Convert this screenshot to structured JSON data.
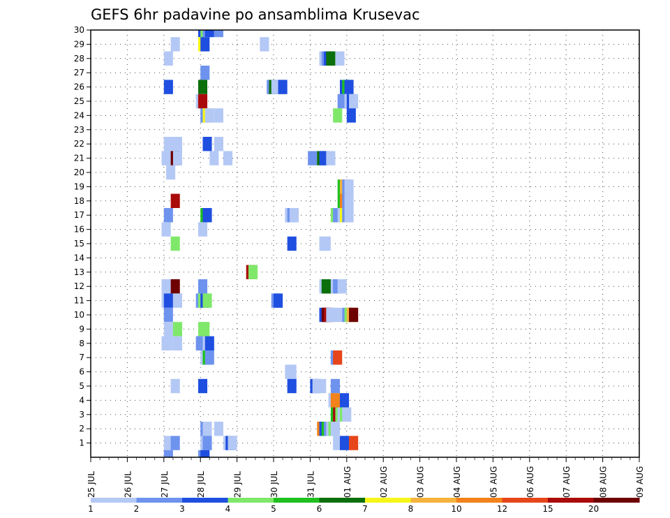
{
  "chart_data": {
    "type": "heatmap",
    "title": "GEFS 6hr padavine po ansamblima Krusevac",
    "xlabel": "",
    "ylabel": "",
    "x_tick_labels": [
      "25 JUL",
      "26 JUL",
      "27 JUL",
      "28 JUL",
      "29 JUL",
      "30 JUL",
      "31 JUL",
      "01 AUG",
      "02 AUG",
      "03 AUG",
      "04 AUG",
      "05 AUG",
      "06 AUG",
      "07 AUG",
      "08 AUG",
      "09 AUG"
    ],
    "x_range_days": [
      0,
      15
    ],
    "steps_per_day": 4,
    "y_tick_labels": [
      "1",
      "2",
      "3",
      "4",
      "5",
      "6",
      "7",
      "8",
      "9",
      "10",
      "11",
      "12",
      "13",
      "14",
      "15",
      "16",
      "17",
      "18",
      "19",
      "20",
      "21",
      "22",
      "23",
      "24",
      "25",
      "26",
      "27",
      "28",
      "29",
      "30"
    ],
    "y_range": [
      0,
      30
    ],
    "grid": true,
    "legend": {
      "placement": "bottom",
      "labels": [
        "1",
        "2",
        "3",
        "4",
        "5",
        "6",
        "7",
        "8",
        "10",
        "12",
        "15",
        "20"
      ],
      "colors": [
        "#b4c8f5",
        "#6e93ee",
        "#1f4fe0",
        "#7fe86a",
        "#1fc01f",
        "#0b6f0b",
        "#f5f51a",
        "#f5b23c",
        "#f28219",
        "#e6461a",
        "#aa0a0a",
        "#6e0000"
      ]
    },
    "cells": [
      {
        "x": 11.75,
        "y": 30,
        "v": 3
      },
      {
        "x": 12.0,
        "y": 30,
        "v": 4
      },
      {
        "x": 12.25,
        "y": 30,
        "v": 2
      },
      {
        "x": 12.5,
        "y": 30,
        "v": 3
      },
      {
        "x": 13.5,
        "y": 30,
        "v": 2
      },
      {
        "x": 8.75,
        "y": 29,
        "v": 1
      },
      {
        "x": 11.75,
        "y": 29,
        "v": 7
      },
      {
        "x": 12.0,
        "y": 29,
        "v": 3
      },
      {
        "x": 18.5,
        "y": 29,
        "v": 1
      },
      {
        "x": 8.0,
        "y": 28,
        "v": 1
      },
      {
        "x": 25.0,
        "y": 28,
        "v": 1
      },
      {
        "x": 25.25,
        "y": 28,
        "v": 2
      },
      {
        "x": 25.5,
        "y": 28,
        "v": 3
      },
      {
        "x": 25.75,
        "y": 28,
        "v": 6
      },
      {
        "x": 26.75,
        "y": 28,
        "v": 1
      },
      {
        "x": 12.0,
        "y": 27,
        "v": 2
      },
      {
        "x": 8.0,
        "y": 26,
        "v": 3
      },
      {
        "x": 11.75,
        "y": 26,
        "v": 6
      },
      {
        "x": 19.25,
        "y": 26,
        "v": 2
      },
      {
        "x": 19.5,
        "y": 26,
        "v": 6
      },
      {
        "x": 19.75,
        "y": 26,
        "v": 1
      },
      {
        "x": 20.25,
        "y": 26,
        "v": 1
      },
      {
        "x": 20.5,
        "y": 26,
        "v": 3
      },
      {
        "x": 27.25,
        "y": 26,
        "v": 3
      },
      {
        "x": 27.5,
        "y": 26,
        "v": 5
      },
      {
        "x": 27.75,
        "y": 26,
        "v": 3
      },
      {
        "x": 11.5,
        "y": 25,
        "v": 1
      },
      {
        "x": 11.75,
        "y": 25,
        "v": 15
      },
      {
        "x": 27.0,
        "y": 25,
        "v": 2
      },
      {
        "x": 27.25,
        "y": 25,
        "v": 2
      },
      {
        "x": 27.75,
        "y": 25,
        "v": 1
      },
      {
        "x": 28.0,
        "y": 25,
        "v": 3
      },
      {
        "x": 28.25,
        "y": 25,
        "v": 1
      },
      {
        "x": 12.0,
        "y": 24,
        "v": 2
      },
      {
        "x": 12.25,
        "y": 24,
        "v": 7
      },
      {
        "x": 12.5,
        "y": 24,
        "v": 1
      },
      {
        "x": 13.5,
        "y": 24,
        "v": 1
      },
      {
        "x": 26.5,
        "y": 24,
        "v": 4
      },
      {
        "x": 28.0,
        "y": 24,
        "v": 3
      },
      {
        "x": 8.0,
        "y": 22,
        "v": 1
      },
      {
        "x": 8.75,
        "y": 22,
        "v": 1
      },
      {
        "x": 9.0,
        "y": 22,
        "v": 1
      },
      {
        "x": 12.25,
        "y": 22,
        "v": 3
      },
      {
        "x": 13.5,
        "y": 22,
        "v": 1
      },
      {
        "x": 7.75,
        "y": 21,
        "v": 1
      },
      {
        "x": 8.0,
        "y": 21,
        "v": 1
      },
      {
        "x": 8.75,
        "y": 21,
        "v": 20
      },
      {
        "x": 9.0,
        "y": 21,
        "v": 1
      },
      {
        "x": 13.0,
        "y": 21,
        "v": 1
      },
      {
        "x": 14.5,
        "y": 21,
        "v": 1
      },
      {
        "x": 23.75,
        "y": 21,
        "v": 2
      },
      {
        "x": 24.75,
        "y": 21,
        "v": 6
      },
      {
        "x": 25.0,
        "y": 21,
        "v": 3
      },
      {
        "x": 25.75,
        "y": 21,
        "v": 1
      },
      {
        "x": 8.25,
        "y": 20,
        "v": 1
      },
      {
        "x": 27.0,
        "y": 19,
        "v": 5
      },
      {
        "x": 27.25,
        "y": 19,
        "v": 8
      },
      {
        "x": 27.5,
        "y": 19,
        "v": 2
      },
      {
        "x": 27.75,
        "y": 19,
        "v": 1
      },
      {
        "x": 8.75,
        "y": 18,
        "v": 15
      },
      {
        "x": 8.0,
        "y": 17,
        "v": 2
      },
      {
        "x": 12.0,
        "y": 17,
        "v": 5
      },
      {
        "x": 12.25,
        "y": 17,
        "v": 3
      },
      {
        "x": 21.25,
        "y": 17,
        "v": 1
      },
      {
        "x": 21.5,
        "y": 17,
        "v": 2
      },
      {
        "x": 21.75,
        "y": 17,
        "v": 1
      },
      {
        "x": 26.25,
        "y": 17,
        "v": 4
      },
      {
        "x": 26.5,
        "y": 17,
        "v": 2
      },
      {
        "x": 27.0,
        "y": 17,
        "v": 1
      },
      {
        "x": 27.25,
        "y": 17,
        "v": 7
      },
      {
        "x": 27.5,
        "y": 17,
        "v": 2
      },
      {
        "x": 27.75,
        "y": 17,
        "v": 1
      },
      {
        "x": 27.0,
        "y": 18,
        "v": 5
      },
      {
        "x": 27.25,
        "y": 18,
        "v": 10
      },
      {
        "x": 27.5,
        "y": 18,
        "v": 2
      },
      {
        "x": 27.75,
        "y": 18,
        "v": 1
      },
      {
        "x": 7.75,
        "y": 16,
        "v": 1
      },
      {
        "x": 11.75,
        "y": 16,
        "v": 1
      },
      {
        "x": 8.75,
        "y": 15,
        "v": 4
      },
      {
        "x": 21.5,
        "y": 15,
        "v": 3
      },
      {
        "x": 25.0,
        "y": 15,
        "v": 1
      },
      {
        "x": 25.25,
        "y": 15,
        "v": 1
      },
      {
        "x": 17.0,
        "y": 13,
        "v": 15
      },
      {
        "x": 17.25,
        "y": 13,
        "v": 4
      },
      {
        "x": 7.75,
        "y": 12,
        "v": 1
      },
      {
        "x": 8.75,
        "y": 12,
        "v": 20
      },
      {
        "x": 11.75,
        "y": 12,
        "v": 2
      },
      {
        "x": 25.0,
        "y": 12,
        "v": 1
      },
      {
        "x": 25.25,
        "y": 12,
        "v": 6
      },
      {
        "x": 25.5,
        "y": 12,
        "v": 6
      },
      {
        "x": 26.25,
        "y": 12,
        "v": 1
      },
      {
        "x": 26.5,
        "y": 12,
        "v": 2
      },
      {
        "x": 27.0,
        "y": 12,
        "v": 1
      },
      {
        "x": 7.75,
        "y": 11,
        "v": 1
      },
      {
        "x": 8.0,
        "y": 11,
        "v": 3
      },
      {
        "x": 9.0,
        "y": 11,
        "v": 1
      },
      {
        "x": 11.5,
        "y": 11,
        "v": 2
      },
      {
        "x": 11.75,
        "y": 11,
        "v": 4
      },
      {
        "x": 12.0,
        "y": 11,
        "v": 3
      },
      {
        "x": 12.25,
        "y": 11,
        "v": 4
      },
      {
        "x": 19.75,
        "y": 11,
        "v": 2
      },
      {
        "x": 20.0,
        "y": 11,
        "v": 3
      },
      {
        "x": 8.0,
        "y": 10,
        "v": 2
      },
      {
        "x": 25.0,
        "y": 10,
        "v": 3
      },
      {
        "x": 25.25,
        "y": 10,
        "v": 20
      },
      {
        "x": 25.5,
        "y": 10,
        "v": 15
      },
      {
        "x": 25.75,
        "y": 10,
        "v": 1
      },
      {
        "x": 26.5,
        "y": 10,
        "v": 1
      },
      {
        "x": 27.5,
        "y": 10,
        "v": 2
      },
      {
        "x": 27.75,
        "y": 10,
        "v": 4
      },
      {
        "x": 28.0,
        "y": 10,
        "v": 8
      },
      {
        "x": 28.25,
        "y": 10,
        "v": 20
      },
      {
        "x": 8.0,
        "y": 9,
        "v": 1
      },
      {
        "x": 9.0,
        "y": 9,
        "v": 4
      },
      {
        "x": 11.75,
        "y": 9,
        "v": 4
      },
      {
        "x": 12.0,
        "y": 9,
        "v": 4
      },
      {
        "x": 7.75,
        "y": 8,
        "v": 1
      },
      {
        "x": 8.0,
        "y": 8,
        "v": 1
      },
      {
        "x": 9.0,
        "y": 8,
        "v": 1
      },
      {
        "x": 11.5,
        "y": 8,
        "v": 2
      },
      {
        "x": 11.75,
        "y": 8,
        "v": 2
      },
      {
        "x": 12.0,
        "y": 8,
        "v": 2
      },
      {
        "x": 12.25,
        "y": 8,
        "v": 1
      },
      {
        "x": 12.5,
        "y": 8,
        "v": 3
      },
      {
        "x": 12.0,
        "y": 7,
        "v": 1
      },
      {
        "x": 12.25,
        "y": 7,
        "v": 5
      },
      {
        "x": 12.5,
        "y": 7,
        "v": 2
      },
      {
        "x": 26.25,
        "y": 7,
        "v": 2
      },
      {
        "x": 26.5,
        "y": 7,
        "v": 12
      },
      {
        "x": 21.25,
        "y": 6,
        "v": 1
      },
      {
        "x": 21.5,
        "y": 6,
        "v": 1
      },
      {
        "x": 8.75,
        "y": 5,
        "v": 1
      },
      {
        "x": 11.75,
        "y": 5,
        "v": 3
      },
      {
        "x": 21.5,
        "y": 5,
        "v": 3
      },
      {
        "x": 24.0,
        "y": 5,
        "v": 3
      },
      {
        "x": 24.25,
        "y": 5,
        "v": 1
      },
      {
        "x": 24.75,
        "y": 5,
        "v": 1
      },
      {
        "x": 26.25,
        "y": 5,
        "v": 2
      },
      {
        "x": 26.0,
        "y": 4,
        "v": 1
      },
      {
        "x": 26.25,
        "y": 4,
        "v": 10
      },
      {
        "x": 27.25,
        "y": 4,
        "v": 3
      },
      {
        "x": 26.25,
        "y": 3,
        "v": 5
      },
      {
        "x": 26.5,
        "y": 3,
        "v": 15
      },
      {
        "x": 26.75,
        "y": 3,
        "v": 4
      },
      {
        "x": 27.0,
        "y": 3,
        "v": 1
      },
      {
        "x": 27.25,
        "y": 3,
        "v": 4
      },
      {
        "x": 27.5,
        "y": 3,
        "v": 1
      },
      {
        "x": 12.0,
        "y": 2,
        "v": 2
      },
      {
        "x": 12.25,
        "y": 2,
        "v": 1
      },
      {
        "x": 13.5,
        "y": 2,
        "v": 1
      },
      {
        "x": 24.75,
        "y": 2,
        "v": 10
      },
      {
        "x": 25.0,
        "y": 2,
        "v": 3
      },
      {
        "x": 25.25,
        "y": 2,
        "v": 5
      },
      {
        "x": 25.5,
        "y": 2,
        "v": 2
      },
      {
        "x": 25.75,
        "y": 2,
        "v": 1
      },
      {
        "x": 26.0,
        "y": 2,
        "v": 4
      },
      {
        "x": 26.25,
        "y": 2,
        "v": 1
      },
      {
        "x": 8.0,
        "y": 1,
        "v": 1
      },
      {
        "x": 8.75,
        "y": 1,
        "v": 2
      },
      {
        "x": 12.0,
        "y": 1,
        "v": 1
      },
      {
        "x": 12.25,
        "y": 1,
        "v": 2
      },
      {
        "x": 14.5,
        "y": 1,
        "v": 1
      },
      {
        "x": 14.75,
        "y": 1,
        "v": 3
      },
      {
        "x": 15.0,
        "y": 1,
        "v": 1
      },
      {
        "x": 26.5,
        "y": 1,
        "v": 1
      },
      {
        "x": 27.25,
        "y": 1,
        "v": 3
      },
      {
        "x": 28.25,
        "y": 1,
        "v": 12
      },
      {
        "x": 8.0,
        "y": 0,
        "v": 2
      },
      {
        "x": 11.75,
        "y": 0,
        "v": 2
      },
      {
        "x": 12.0,
        "y": 0,
        "v": 3
      }
    ]
  }
}
